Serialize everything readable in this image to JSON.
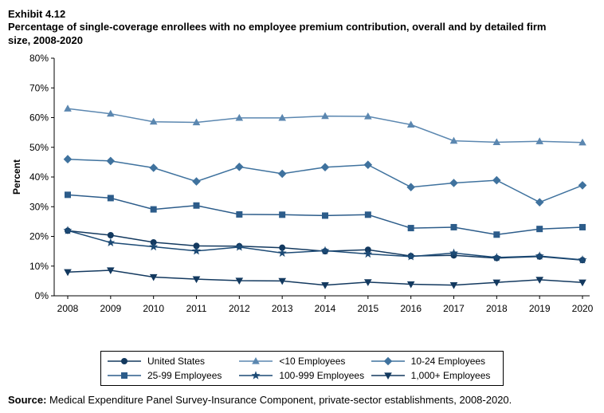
{
  "header": {
    "exhibit": "Exhibit 4.12",
    "title": "Percentage of single-coverage enrollees with no employee premium contribution, overall and by detailed firm size, 2008-2020"
  },
  "chart_data": {
    "type": "line",
    "x": [
      2008,
      2009,
      2010,
      2011,
      2012,
      2013,
      2014,
      2015,
      2016,
      2017,
      2018,
      2019,
      2020
    ],
    "ylabel": "Percent",
    "ylim": [
      0,
      80
    ],
    "ytick_step": 10,
    "ytick_suffix": "%",
    "grid": false,
    "legend_position": "bottom",
    "series": [
      {
        "name": "United States",
        "marker": "circle",
        "color": "#13395f",
        "values": [
          21.9,
          20.4,
          18.0,
          16.8,
          16.7,
          16.2,
          15.0,
          15.5,
          13.4,
          13.6,
          12.7,
          13.2,
          12.0
        ]
      },
      {
        "name": "<10 Employees",
        "marker": "triangle",
        "color": "#5b87b0",
        "values": [
          63.0,
          61.3,
          58.6,
          58.4,
          59.9,
          59.9,
          60.5,
          60.4,
          57.6,
          52.2,
          51.7,
          52.0,
          51.6
        ]
      },
      {
        "name": "10-24 Employees",
        "marker": "diamond",
        "color": "#3f729e",
        "values": [
          46.0,
          45.4,
          43.1,
          38.5,
          43.4,
          41.1,
          43.3,
          44.1,
          36.6,
          38.0,
          38.9,
          31.5,
          37.2
        ]
      },
      {
        "name": "25-99 Employees",
        "marker": "square",
        "color": "#2c5c8a",
        "values": [
          34.0,
          32.9,
          29.1,
          30.4,
          27.4,
          27.3,
          27.0,
          27.3,
          22.8,
          23.1,
          20.6,
          22.5,
          23.1
        ]
      },
      {
        "name": "100-999 Employees",
        "marker": "star",
        "color": "#1c4a75",
        "values": [
          22.0,
          17.9,
          16.5,
          15.1,
          16.4,
          14.4,
          15.2,
          14.1,
          13.2,
          14.4,
          12.9,
          13.4,
          12.1
        ]
      },
      {
        "name": "1,000+ Employees",
        "marker": "triangle-down",
        "color": "#13395f",
        "values": [
          8.0,
          8.6,
          6.3,
          5.6,
          5.1,
          5.0,
          3.6,
          4.6,
          3.9,
          3.6,
          4.5,
          5.4,
          4.5
        ]
      }
    ]
  },
  "source": {
    "label": "Source:",
    "text": " Medical Expenditure Panel Survey-Insurance Component, private-sector establishments, 2008-2020."
  }
}
